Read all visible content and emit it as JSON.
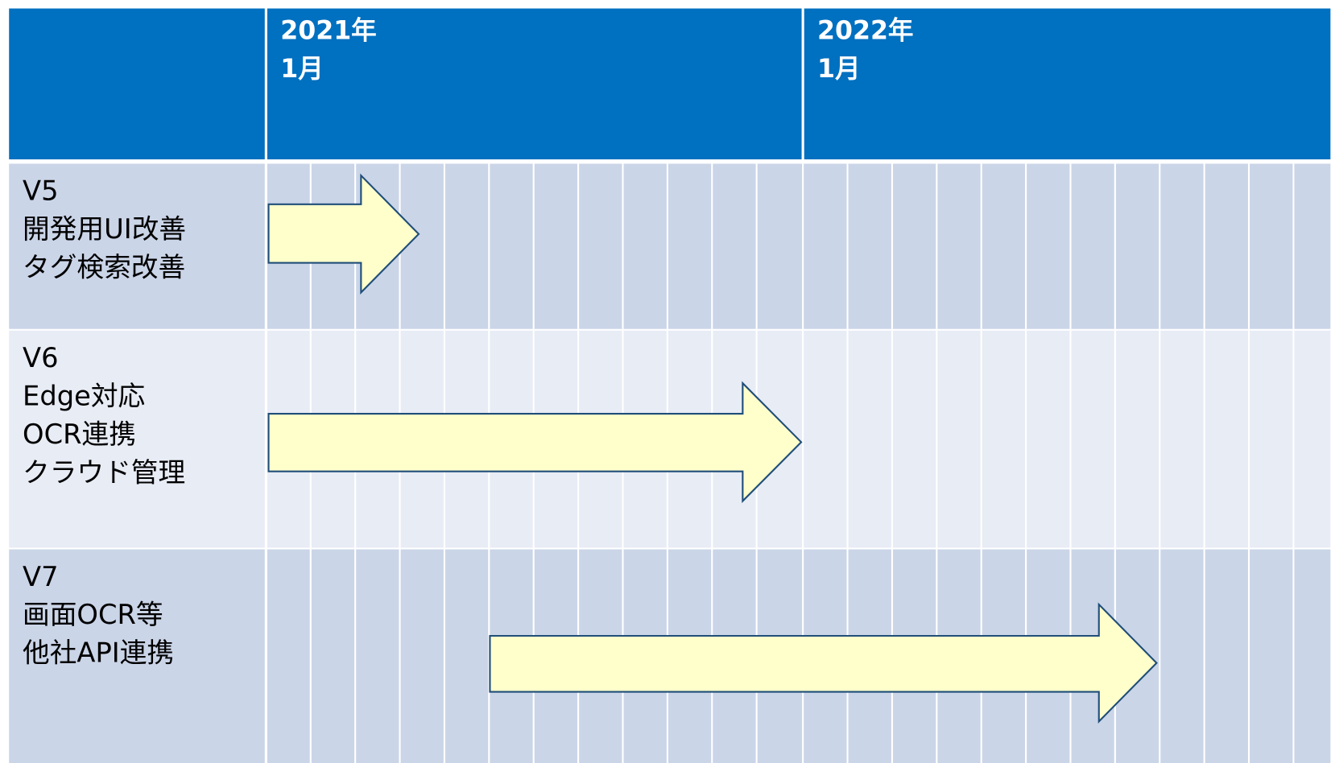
{
  "header": {
    "columns": [
      {
        "year": "2021年",
        "month": "1月"
      },
      {
        "year": "2022年",
        "month": "1月"
      }
    ]
  },
  "rows": [
    {
      "lines": [
        "V5",
        "開発用UI改善",
        "タグ検索改善"
      ]
    },
    {
      "lines": [
        "V6",
        "Edge対応",
        "OCR連携",
        "クラウド管理"
      ]
    },
    {
      "lines": [
        "V7",
        "画面OCR等",
        "他社API連携"
      ]
    }
  ]
}
